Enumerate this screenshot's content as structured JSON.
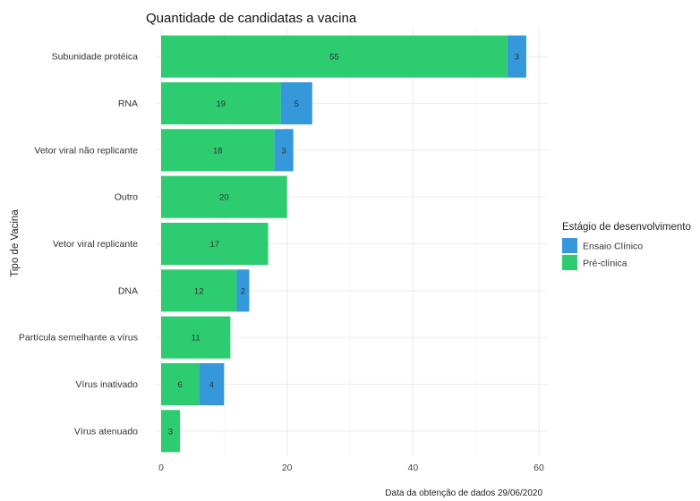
{
  "chart_data": {
    "type": "bar",
    "orientation": "horizontal",
    "stacked": true,
    "title": "Quantidade de candidatas a vacina",
    "ylabel": "Tipo de Vacina",
    "xlabel": "",
    "caption": "Data da obtenção de dados 29/06/2020",
    "categories": [
      "Subunidade protéica",
      "RNA",
      "Vetor viral não replicante",
      "Outro",
      "Vetor viral replicante",
      "DNA",
      "Partícula semelhante a vírus",
      "Vírus inativado",
      "Vírus atenuado"
    ],
    "series": [
      {
        "name": "Pré-clínica",
        "color": "#2ecc71",
        "values": [
          55,
          19,
          18,
          20,
          17,
          12,
          11,
          6,
          3
        ]
      },
      {
        "name": "Ensaio Clínico",
        "color": "#3498db",
        "values": [
          3,
          5,
          3,
          0,
          0,
          2,
          0,
          4,
          0
        ]
      }
    ],
    "xlim": [
      0,
      60
    ],
    "xticks": [
      0,
      20,
      40,
      60
    ],
    "grid": true,
    "legend": {
      "title": "Estágio de desenvolvimento",
      "position": "right",
      "items": [
        {
          "label": "Ensaio Clínico",
          "color": "#3498db"
        },
        {
          "label": "Pré-clínica",
          "color": "#2ecc71"
        }
      ]
    }
  }
}
